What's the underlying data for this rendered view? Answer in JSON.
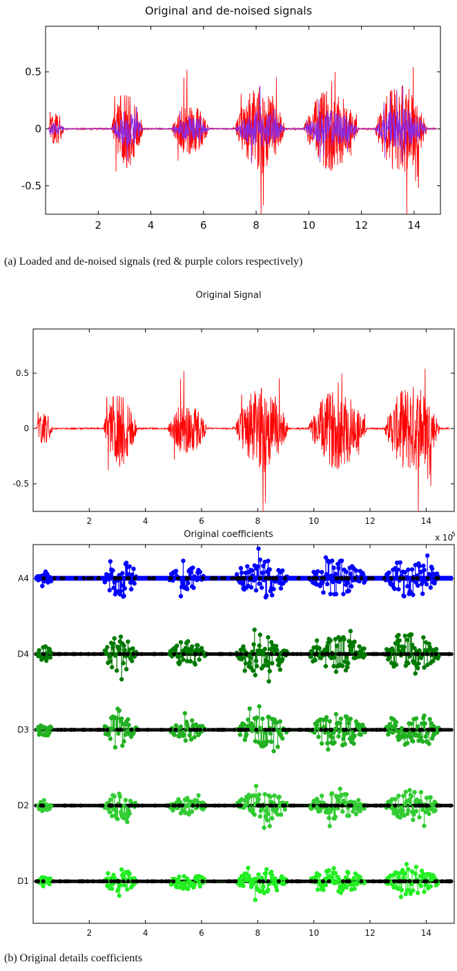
{
  "captions": {
    "a": "(a) Loaded and de-noised signals (red & purple colors respectively)",
    "b": "(b) Original details coefficients"
  },
  "chart_data": [
    {
      "type": "line",
      "title": "Original and de-noised signals",
      "xlim": [
        0,
        15
      ],
      "ylim": [
        -0.75,
        0.9
      ],
      "x_ticks": [
        2,
        4,
        6,
        8,
        10,
        12,
        14
      ],
      "y_ticks": [
        -0.5,
        0,
        0.5
      ],
      "grid": false,
      "bursts": [
        {
          "x": [
            0.1,
            0.7
          ],
          "amp": 0.35
        },
        {
          "x": [
            2.5,
            3.7
          ],
          "amp": 0.82
        },
        {
          "x": [
            4.8,
            6.2
          ],
          "amp": 0.55
        },
        {
          "x": [
            7.2,
            9.1
          ],
          "amp": 0.85
        },
        {
          "x": [
            9.8,
            11.9
          ],
          "amp": 0.8
        },
        {
          "x": [
            12.5,
            14.5
          ],
          "amp": 0.9
        }
      ],
      "series": [
        {
          "color": "#ff0000",
          "scale": 1.0
        },
        {
          "color": "#8a2be2",
          "scale": 0.45
        }
      ]
    },
    {
      "type": "line",
      "title": "Original Signal",
      "xlim": [
        0,
        15
      ],
      "ylim": [
        -0.75,
        0.9
      ],
      "x_ticks": [
        2,
        4,
        6,
        8,
        10,
        12,
        14
      ],
      "y_ticks": [
        -0.5,
        0,
        0.5
      ],
      "grid": false,
      "bursts": [
        {
          "x": [
            0.1,
            0.7
          ],
          "amp": 0.35
        },
        {
          "x": [
            2.5,
            3.7
          ],
          "amp": 0.82
        },
        {
          "x": [
            4.8,
            6.2
          ],
          "amp": 0.55
        },
        {
          "x": [
            7.2,
            9.1
          ],
          "amp": 0.85
        },
        {
          "x": [
            9.8,
            11.9
          ],
          "amp": 0.8
        },
        {
          "x": [
            12.5,
            14.5
          ],
          "amp": 0.9
        }
      ],
      "series": [
        {
          "color": "#ff0000",
          "scale": 1.0
        }
      ]
    },
    {
      "type": "scatter",
      "title": "Original coefficients",
      "x_multiplier": "x 10",
      "x_multiplier_exp": "5",
      "xlim": [
        0,
        15
      ],
      "x_ticks": [
        2,
        4,
        6,
        8,
        10,
        12,
        14
      ],
      "levels": [
        {
          "label": "A4",
          "color": "#0000ff",
          "amp": 1.0
        },
        {
          "label": "D4",
          "color": "#007a00",
          "amp": 0.95
        },
        {
          "label": "D3",
          "color": "#22b022",
          "amp": 0.85
        },
        {
          "label": "D2",
          "color": "#33cc33",
          "amp": 0.75
        },
        {
          "label": "D1",
          "color": "#22ee22",
          "amp": 0.65
        }
      ],
      "grid": false
    }
  ]
}
